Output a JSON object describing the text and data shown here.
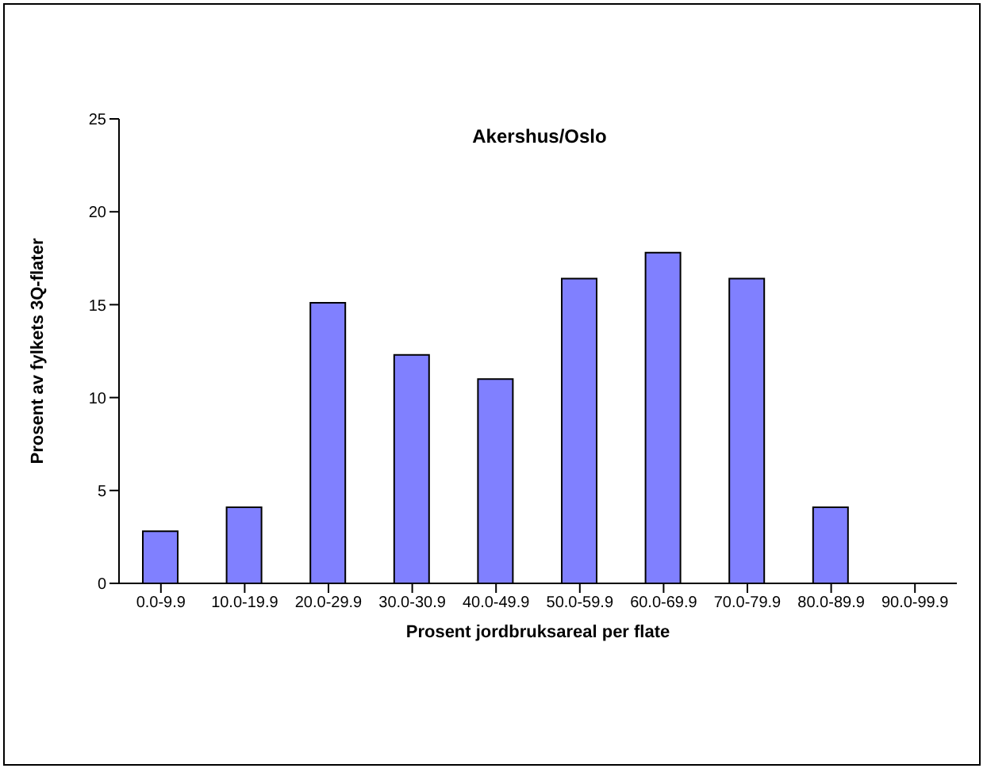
{
  "chart_data": {
    "type": "bar",
    "title": "Akershus/Oslo",
    "xlabel": "Prosent jordbruksareal per flate",
    "ylabel": "Prosent av fylkets 3Q-flater",
    "categories": [
      "0.0-9.9",
      "10.0-19.9",
      "20.0-29.9",
      "30.0-30.9",
      "40.0-49.9",
      "50.0-59.9",
      "60.0-69.9",
      "70.0-79.9",
      "80.0-89.9",
      "90.0-99.9"
    ],
    "values": [
      2.8,
      4.1,
      15.1,
      12.3,
      11.0,
      16.4,
      17.8,
      16.4,
      4.1,
      0
    ],
    "color": "#8080ff",
    "ylim": [
      0,
      25
    ],
    "yticks": [
      0,
      5,
      10,
      15,
      20,
      25
    ],
    "grid": false,
    "legend": false
  }
}
